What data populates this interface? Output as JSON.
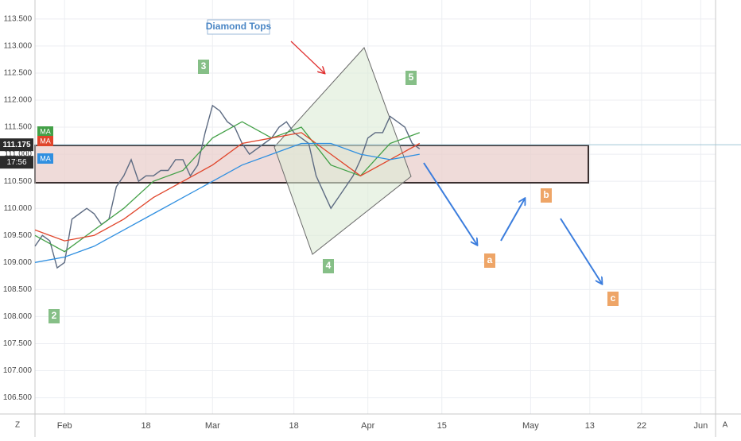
{
  "chart_data": {
    "type": "line",
    "x": [
      -4,
      -3,
      -2,
      -1,
      0,
      1,
      2,
      3,
      4,
      5,
      6,
      7,
      8,
      9,
      10,
      11,
      12,
      13,
      14,
      15,
      16,
      17,
      18,
      19,
      20,
      21,
      22,
      23,
      24,
      25,
      26,
      27,
      28,
      29,
      30,
      31,
      32,
      33,
      34,
      35,
      36,
      37,
      38,
      39,
      40,
      41,
      42,
      43,
      44,
      45,
      46,
      47,
      48
    ],
    "series": [
      {
        "color": "#5d6b82",
        "values": [
          109.3,
          109.5,
          109.4,
          108.9,
          109.0,
          109.8,
          109.9,
          110.0,
          109.9,
          109.7,
          109.8,
          110.4,
          110.6,
          110.9,
          110.5,
          110.6,
          110.6,
          110.7,
          110.7,
          110.9,
          110.9,
          110.6,
          110.8,
          111.4,
          111.9,
          111.8,
          111.6,
          111.5,
          111.2,
          111.0,
          111.1,
          111.2,
          111.3,
          111.5,
          111.6,
          111.4,
          111.3,
          111.2,
          110.6,
          110.3,
          110.0,
          110.2,
          110.4,
          110.6,
          110.9,
          111.3,
          111.4,
          111.4,
          111.7,
          111.6,
          111.5,
          111.2,
          111.1
        ]
      },
      {
        "name": "MA",
        "color": "#43a047",
        "x": [
          -4,
          0,
          4,
          8,
          12,
          16,
          20,
          24,
          28,
          32,
          36,
          40,
          44,
          48
        ],
        "values": [
          109.5,
          109.2,
          109.6,
          110.0,
          110.5,
          110.7,
          111.3,
          111.6,
          111.3,
          111.5,
          110.8,
          110.6,
          111.2,
          111.4
        ]
      },
      {
        "name": "MA",
        "color": "#e0452b",
        "x": [
          -4,
          0,
          4,
          8,
          12,
          16,
          20,
          24,
          28,
          32,
          36,
          40,
          44,
          48
        ],
        "values": [
          109.6,
          109.4,
          109.5,
          109.8,
          110.2,
          110.5,
          110.8,
          111.2,
          111.3,
          111.4,
          111.0,
          110.6,
          110.9,
          111.2
        ]
      },
      {
        "name": "MA",
        "color": "#2f8fe0",
        "x": [
          -4,
          0,
          4,
          8,
          12,
          16,
          20,
          24,
          28,
          32,
          36,
          40,
          44,
          48
        ],
        "values": [
          109.0,
          109.1,
          109.3,
          109.6,
          109.9,
          110.2,
          110.5,
          110.8,
          111.0,
          111.2,
          111.2,
          111.0,
          110.9,
          111.0
        ]
      }
    ],
    "last_price": {
      "value": 111.175,
      "label": "111.175"
    },
    "countdown": "17:56",
    "xlim": [
      -4,
      88
    ],
    "xticks": [
      {
        "value": 0,
        "label": "Feb"
      },
      {
        "value": 11,
        "label": "18"
      },
      {
        "value": 20,
        "label": "Mar"
      },
      {
        "value": 31,
        "label": "18"
      },
      {
        "value": 41,
        "label": "Apr"
      },
      {
        "value": 51,
        "label": "15"
      },
      {
        "value": 63,
        "label": "May"
      },
      {
        "value": 71,
        "label": "13"
      },
      {
        "value": 78,
        "label": "22"
      },
      {
        "value": 86,
        "label": "Jun"
      }
    ],
    "ylim": [
      106.2,
      113.85
    ],
    "yticks": [
      {
        "value": 106.5,
        "label": "106.500"
      },
      {
        "value": 107,
        "label": "107.000"
      },
      {
        "value": 107.5,
        "label": "107.500"
      },
      {
        "value": 108,
        "label": "108.000"
      },
      {
        "value": 108.5,
        "label": "108.500"
      },
      {
        "value": 109,
        "label": "109.000"
      },
      {
        "value": 109.5,
        "label": "109.500"
      },
      {
        "value": 110,
        "label": "110.000"
      },
      {
        "value": 110.5,
        "label": "110.500"
      },
      {
        "value": 111,
        "label": "111.000"
      },
      {
        "value": 111.5,
        "label": "111.500"
      },
      {
        "value": 112,
        "label": "112.000"
      },
      {
        "value": 112.5,
        "label": "112.500"
      },
      {
        "value": 113,
        "label": "113.000"
      },
      {
        "value": 113.5,
        "label": "113.500"
      }
    ],
    "grid": true,
    "annotations": [
      "Diamond Tops",
      "2",
      "3",
      "4",
      "5",
      "a",
      "b",
      "c"
    ],
    "buttons": [
      "Z",
      "A"
    ]
  }
}
